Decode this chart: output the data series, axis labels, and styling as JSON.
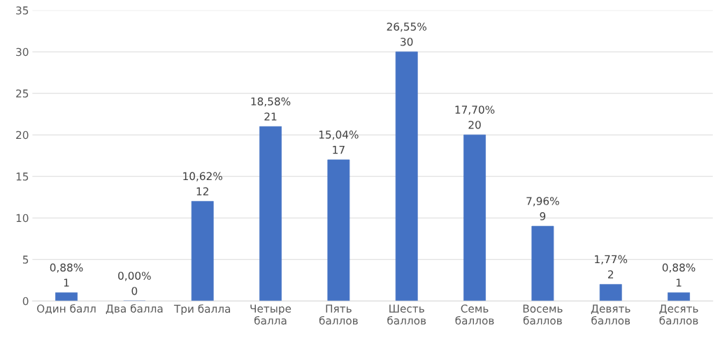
{
  "chart_data": {
    "type": "bar",
    "categories": [
      "Один балл",
      "Два балла",
      "Три балла",
      "Четыре балла",
      "Пять баллов",
      "Шесть баллов",
      "Семь баллов",
      "Восемь баллов",
      "Девять баллов",
      "Десять баллов"
    ],
    "values": [
      1,
      0,
      12,
      21,
      17,
      30,
      20,
      9,
      2,
      1
    ],
    "value_labels": [
      "0,88%\n1",
      "0,00%\n0",
      "10,62%\n12",
      "18,58%\n21",
      "15,04%\n17",
      "26,55%\n30",
      "17,70%\n20",
      "7,96%\n9",
      "1,77%\n2",
      "0,88%\n1"
    ],
    "color": "#4472c4",
    "ylim": [
      0,
      35
    ],
    "yticks": [
      0,
      5,
      10,
      15,
      20,
      25,
      30,
      35
    ],
    "grid": "y",
    "legend": false
  }
}
